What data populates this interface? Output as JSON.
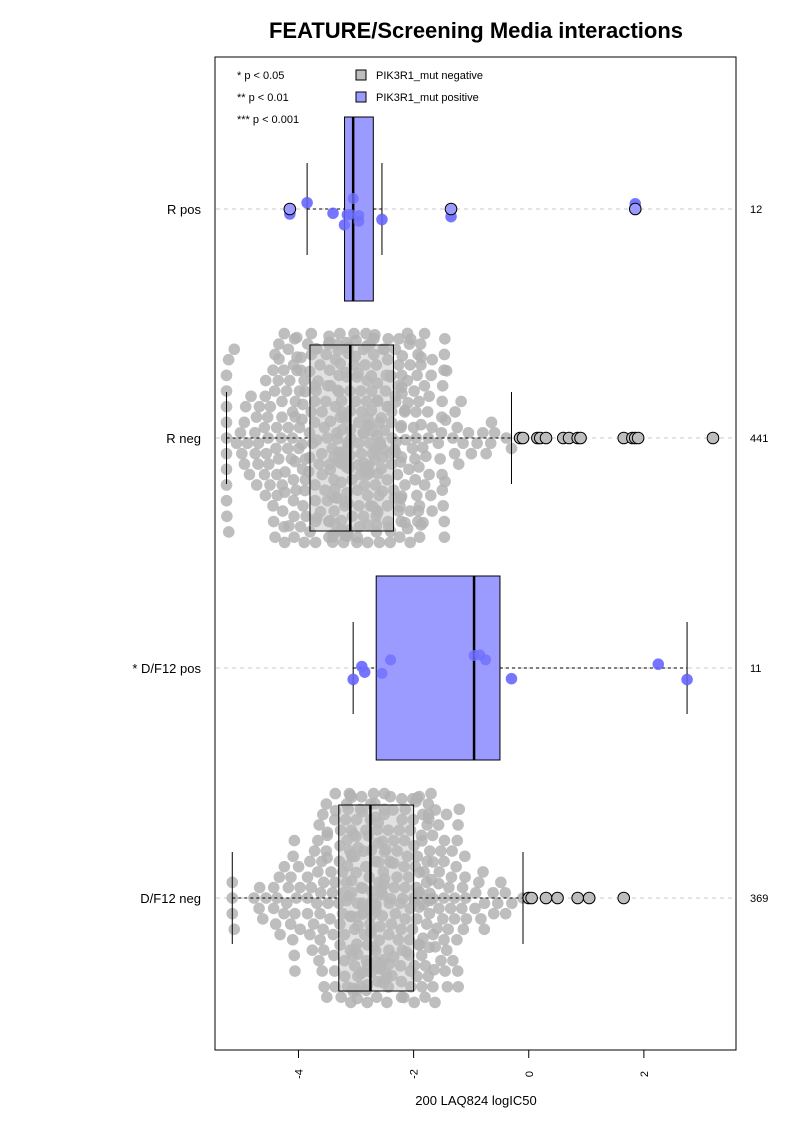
{
  "chart_data": {
    "type": "boxplot-beeswarm",
    "title": "FEATURE/Screening Media interactions",
    "xlabel": "200 LAQ824 logIC50",
    "xlim": [
      -5.45,
      3.6
    ],
    "x_ticks": [
      -4,
      -2,
      0,
      2
    ],
    "x_tick_labels": [
      "-4",
      "-2",
      "0",
      "2"
    ],
    "significance_legend": [
      "* p < 0.05",
      "** p < 0.01",
      "*** p < 0.001"
    ],
    "legend": [
      {
        "label": "PIK3R1_mut negative",
        "color": "#bdbdbd"
      },
      {
        "label": "PIK3R1_mut positive",
        "color": "#9b9bff"
      }
    ],
    "groups": [
      {
        "label": "R pos",
        "count": "12",
        "status": "positive",
        "whisker_low": -3.85,
        "q1": -3.2,
        "median": -3.05,
        "q3": -2.7,
        "whisker_high": -2.55,
        "points": [
          -4.15,
          -3.85,
          -3.4,
          -3.2,
          -3.15,
          -3.1,
          -3.05,
          -2.95,
          -2.95,
          -2.55,
          -1.35,
          1.85
        ],
        "outliers": [
          -4.15,
          -1.35,
          1.85
        ]
      },
      {
        "label": "R neg",
        "count": "441",
        "status": "negative",
        "whisker_low": -5.25,
        "q1": -3.8,
        "median": -3.1,
        "q3": -2.35,
        "whisker_high": -0.3,
        "outliers": [
          -0.15,
          -0.1,
          0.15,
          0.2,
          0.3,
          0.6,
          0.7,
          0.85,
          0.9,
          1.65,
          1.8,
          1.85,
          1.9,
          3.2
        ]
      },
      {
        "label": "* D/F12 pos",
        "count": "11",
        "status": "positive",
        "whisker_low": -3.05,
        "q1": -2.65,
        "median": -0.95,
        "q3": -0.5,
        "whisker_high": 2.75,
        "points": [
          -3.05,
          -2.9,
          -2.85,
          -2.55,
          -2.4,
          -0.95,
          -0.85,
          -0.75,
          -0.3,
          2.25,
          2.75
        ],
        "outliers": []
      },
      {
        "label": "D/F12 neg",
        "count": "369",
        "status": "negative",
        "whisker_low": -5.15,
        "q1": -3.3,
        "median": -2.75,
        "q3": -2.0,
        "whisker_high": -0.1,
        "outliers": [
          0.0,
          0.05,
          0.3,
          0.5,
          0.85,
          1.05,
          1.65
        ]
      }
    ]
  }
}
